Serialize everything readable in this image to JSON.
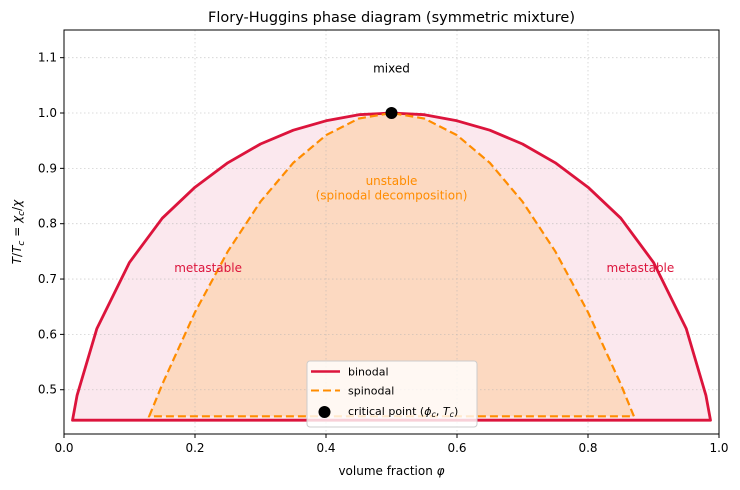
{
  "chart_data": {
    "type": "line",
    "title": "Flory-Huggins phase diagram (symmetric mixture)",
    "xlabel": "volume fraction φ",
    "ylabel": "T/T_c = χ_c/χ",
    "xlim": [
      0.0,
      1.0
    ],
    "ylim": [
      0.42,
      1.15
    ],
    "xticks": [
      "0.0",
      "0.2",
      "0.4",
      "0.6",
      "0.8",
      "1.0"
    ],
    "yticks": [
      "0.5",
      "0.6",
      "0.7",
      "0.8",
      "0.9",
      "1.0",
      "1.1"
    ],
    "grid": true,
    "legend_position": "lower center",
    "series": [
      {
        "name": "binodal",
        "style": "solid",
        "color": "#dc143c",
        "fill": "#fbe8ee",
        "x": [
          0.013,
          0.02,
          0.05,
          0.1,
          0.15,
          0.2,
          0.25,
          0.3,
          0.35,
          0.4,
          0.45,
          0.5,
          0.55,
          0.6,
          0.65,
          0.7,
          0.75,
          0.8,
          0.85,
          0.9,
          0.95,
          0.98,
          0.987
        ],
        "y": [
          0.445,
          0.49,
          0.61,
          0.73,
          0.81,
          0.866,
          0.91,
          0.944,
          0.969,
          0.986,
          0.997,
          1.0,
          0.997,
          0.986,
          0.969,
          0.944,
          0.91,
          0.866,
          0.81,
          0.73,
          0.61,
          0.49,
          0.445
        ]
      },
      {
        "name": "spinodal",
        "style": "dashed",
        "color": "#ff8c00",
        "fill": "#fcd9c1",
        "x": [
          0.13,
          0.15,
          0.2,
          0.25,
          0.3,
          0.35,
          0.4,
          0.45,
          0.5,
          0.55,
          0.6,
          0.65,
          0.7,
          0.75,
          0.8,
          0.85,
          0.87
        ],
        "y": [
          0.452,
          0.51,
          0.64,
          0.75,
          0.84,
          0.91,
          0.96,
          0.99,
          1.0,
          0.99,
          0.96,
          0.91,
          0.84,
          0.75,
          0.64,
          0.51,
          0.452
        ]
      },
      {
        "name": "critical point (φ_c, T_c)",
        "style": "marker",
        "color": "#000000",
        "x": [
          0.5
        ],
        "y": [
          1.0
        ]
      }
    ],
    "baseline_y": 0.445,
    "annotations": [
      {
        "text": "mixed",
        "x": 0.5,
        "y": 1.08,
        "color": "#000000"
      },
      {
        "text": "unstable",
        "x": 0.5,
        "y": 0.877,
        "color": "#ff8c00"
      },
      {
        "text": "(spinodal decomposition)",
        "x": 0.5,
        "y": 0.851,
        "color": "#ff8c00"
      },
      {
        "text": "metastable",
        "x": 0.22,
        "y": 0.72,
        "color": "#dc143c"
      },
      {
        "text": "metastable",
        "x": 0.88,
        "y": 0.72,
        "color": "#dc143c"
      }
    ]
  },
  "legend": {
    "binodal": "binodal",
    "spinodal": "spinodal",
    "critical_prefix": "critical point (",
    "critical_suffix": ")"
  }
}
